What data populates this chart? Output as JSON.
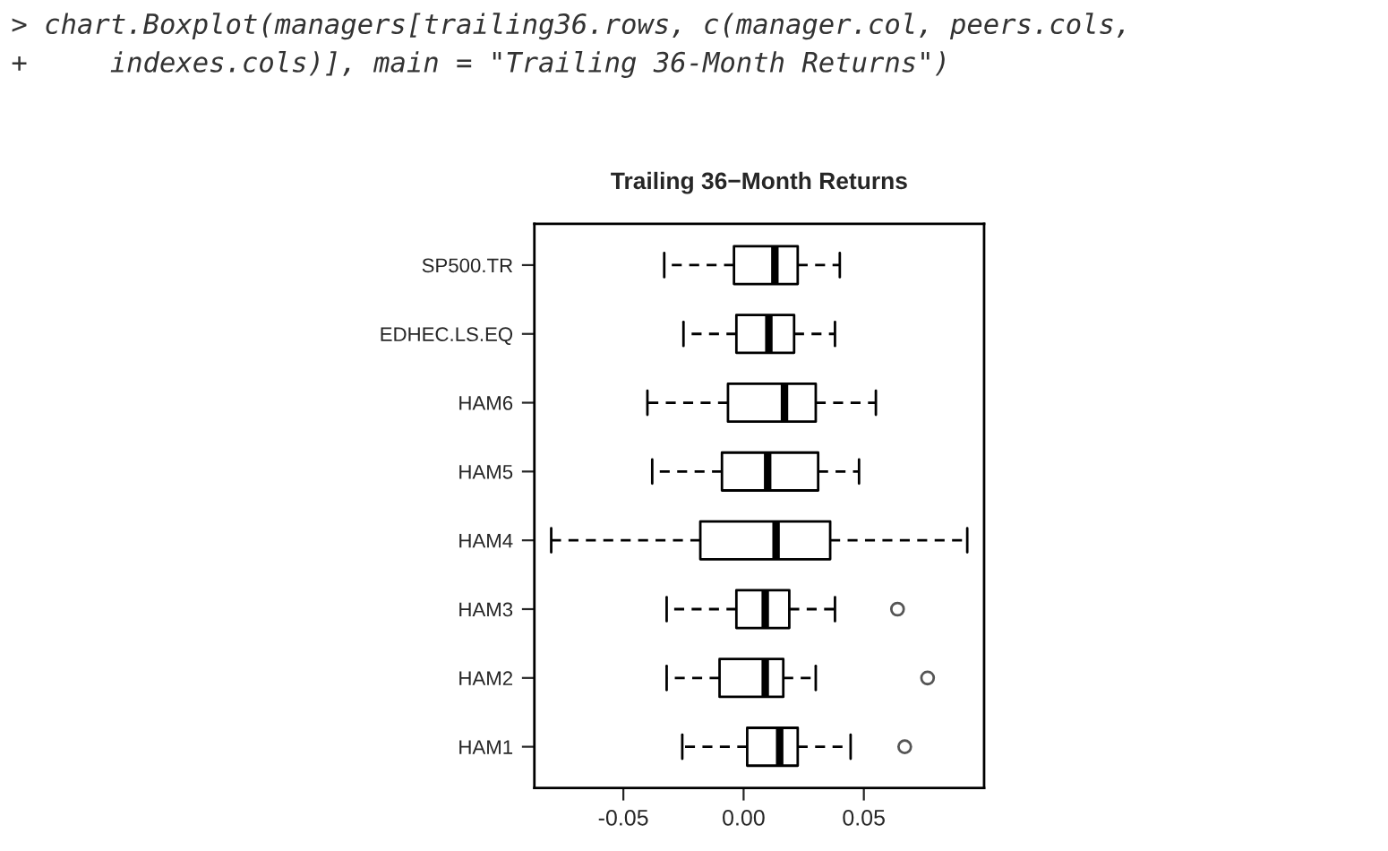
{
  "chart_data": {
    "type": "box",
    "title": "Trailing 36−Month Returns",
    "annotations": [
      "> chart.Boxplot(managers[trailing36.rows, c(manager.col, peers.cols,",
      "+     indexes.cols)], main = \"Trailing 36-Month Returns\")"
    ],
    "orientation": "horizontal",
    "categories": [
      "SP500.TR",
      "EDHEC.LS.EQ",
      "HAM6",
      "HAM5",
      "HAM4",
      "HAM3",
      "HAM2",
      "HAM1"
    ],
    "boxes": [
      {
        "low": -0.033,
        "q1": -0.004,
        "median": 0.013,
        "q3": 0.0225,
        "high": 0.04
      },
      {
        "low": -0.025,
        "q1": -0.003,
        "median": 0.0105,
        "q3": 0.021,
        "high": 0.038
      },
      {
        "low": -0.04,
        "q1": -0.0065,
        "median": 0.017,
        "q3": 0.03,
        "high": 0.055
      },
      {
        "low": -0.038,
        "q1": -0.009,
        "median": 0.01,
        "q3": 0.031,
        "high": 0.048
      },
      {
        "low": -0.08,
        "q1": -0.018,
        "median": 0.0135,
        "q3": 0.036,
        "high": 0.093
      },
      {
        "low": -0.032,
        "q1": -0.003,
        "median": 0.009,
        "q3": 0.019,
        "high": 0.038,
        "outliers": [
          0.064
        ]
      },
      {
        "low": -0.032,
        "q1": -0.01,
        "median": 0.009,
        "q3": 0.0165,
        "high": 0.03,
        "outliers": [
          0.0765
        ]
      },
      {
        "low": -0.0255,
        "q1": 0.0015,
        "median": 0.015,
        "q3": 0.0225,
        "high": 0.0445,
        "outliers": [
          0.067
        ]
      }
    ],
    "xlim": [
      -0.087,
      0.1
    ],
    "xticks": [
      {
        "value": -0.05,
        "label": "-0.05"
      },
      {
        "value": 0.0,
        "label": "0.00"
      },
      {
        "value": 0.05,
        "label": "0.05"
      }
    ],
    "grid": false,
    "legend": false
  }
}
